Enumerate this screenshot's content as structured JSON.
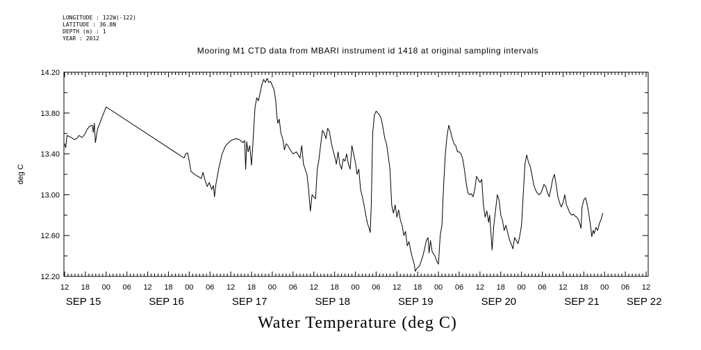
{
  "header": {
    "longitude": "LONGITUDE : 122W(-122)",
    "latitude": "LATITUDE : 36.8N",
    "depth": "DEPTH (m) : 1",
    "year": "YEAR : 2012"
  },
  "chart_data": {
    "type": "line",
    "title": "Mooring M1 CTD data from MBARI instrument id 1418 at original sampling intervals",
    "caption": "Water Temperature (deg C)",
    "ylabel": "deg C",
    "xlabel": "",
    "x_units": "hours since 12:00 SEP 15",
    "xlim": [
      -0.2,
      168.6
    ],
    "ylim": [
      12.2,
      14.2
    ],
    "y_ticks": [
      "12.20",
      "12.60",
      "13.00",
      "13.40",
      "13.80",
      "14.20"
    ],
    "x_hour_labels": [
      "12",
      "18",
      "00",
      "06",
      "12",
      "18",
      "00",
      "06",
      "12",
      "18",
      "00",
      "06",
      "12",
      "18",
      "00",
      "06",
      "12",
      "18",
      "00",
      "06",
      "12",
      "18",
      "00",
      "06",
      "12",
      "18",
      "00",
      "06",
      "12"
    ],
    "day_labels": [
      {
        "label": "SEP 15",
        "hour": 0
      },
      {
        "label": "SEP 16",
        "hour": 24
      },
      {
        "label": "SEP 17",
        "hour": 48
      },
      {
        "label": "SEP 18",
        "hour": 72
      },
      {
        "label": "SEP 19",
        "hour": 96
      },
      {
        "label": "SEP 20",
        "hour": 120
      },
      {
        "label": "SEP 21",
        "hour": 144
      },
      {
        "label": "SEP 22",
        "hour": 162
      }
    ],
    "series": [
      {
        "values": [
          [
            0,
            13.5
          ],
          [
            0.3,
            13.46
          ],
          [
            0.7,
            13.58
          ],
          [
            1.3,
            13.57
          ],
          [
            2,
            13.56
          ],
          [
            2.8,
            13.54
          ],
          [
            3.5,
            13.55
          ],
          [
            4.2,
            13.58
          ],
          [
            5,
            13.56
          ],
          [
            5.8,
            13.59
          ],
          [
            6.5,
            13.64
          ],
          [
            7.2,
            13.67
          ],
          [
            8,
            13.68
          ],
          [
            8.3,
            13.61
          ],
          [
            8.6,
            13.7
          ],
          [
            8.9,
            13.51
          ],
          [
            9.5,
            13.64
          ],
          [
            10.5,
            13.73
          ],
          [
            11.3,
            13.8
          ],
          [
            12,
            13.86
          ],
          [
            34.5,
            13.36
          ],
          [
            35,
            13.4
          ],
          [
            35.5,
            13.41
          ],
          [
            36,
            13.33
          ],
          [
            36.5,
            13.23
          ],
          [
            37.5,
            13.2
          ],
          [
            38.5,
            13.18
          ],
          [
            39.5,
            13.16
          ],
          [
            40,
            13.22
          ],
          [
            40.5,
            13.15
          ],
          [
            41.2,
            13.08
          ],
          [
            41.8,
            13.12
          ],
          [
            42.5,
            13.05
          ],
          [
            43,
            13.09
          ],
          [
            43.3,
            12.98
          ],
          [
            43.7,
            13.1
          ],
          [
            44.5,
            13.25
          ],
          [
            45.5,
            13.4
          ],
          [
            46.5,
            13.48
          ],
          [
            48,
            13.53
          ],
          [
            49.5,
            13.55
          ],
          [
            50.5,
            13.54
          ],
          [
            51.5,
            13.51
          ],
          [
            52,
            13.53
          ],
          [
            52.3,
            13.25
          ],
          [
            52.6,
            13.52
          ],
          [
            53,
            13.42
          ],
          [
            53.5,
            13.48
          ],
          [
            54,
            13.29
          ],
          [
            54.4,
            13.5
          ],
          [
            55,
            13.85
          ],
          [
            55.5,
            13.95
          ],
          [
            56,
            13.92
          ],
          [
            56.5,
            14.0
          ],
          [
            57,
            14.08
          ],
          [
            57.5,
            14.13
          ],
          [
            58,
            14.1
          ],
          [
            58.5,
            14.14
          ],
          [
            59,
            14.1
          ],
          [
            59.5,
            14.11
          ],
          [
            60,
            14.07
          ],
          [
            60.5,
            14.03
          ],
          [
            61,
            13.92
          ],
          [
            61.3,
            13.78
          ],
          [
            61.6,
            13.7
          ],
          [
            62,
            13.74
          ],
          [
            62.5,
            13.6
          ],
          [
            63,
            13.55
          ],
          [
            63.5,
            13.44
          ],
          [
            64,
            13.5
          ],
          [
            64.5,
            13.48
          ],
          [
            65,
            13.45
          ],
          [
            66,
            13.4
          ],
          [
            67,
            13.42
          ],
          [
            68,
            13.36
          ],
          [
            68.5,
            13.48
          ],
          [
            69,
            13.3
          ],
          [
            70,
            13.2
          ],
          [
            70.5,
            13.05
          ],
          [
            71,
            12.84
          ],
          [
            71.5,
            13.0
          ],
          [
            72.5,
            12.96
          ],
          [
            73,
            13.25
          ],
          [
            73.5,
            13.35
          ],
          [
            74,
            13.5
          ],
          [
            74.5,
            13.63
          ],
          [
            75,
            13.6
          ],
          [
            75.5,
            13.55
          ],
          [
            76,
            13.65
          ],
          [
            76.5,
            13.62
          ],
          [
            77,
            13.52
          ],
          [
            77.5,
            13.44
          ],
          [
            78,
            13.38
          ],
          [
            78.5,
            13.3
          ],
          [
            79,
            13.42
          ],
          [
            79.5,
            13.3
          ],
          [
            80,
            13.25
          ],
          [
            80.5,
            13.35
          ],
          [
            81,
            13.33
          ],
          [
            81.5,
            13.4
          ],
          [
            82,
            13.3
          ],
          [
            82.5,
            13.25
          ],
          [
            83,
            13.48
          ],
          [
            83.5,
            13.4
          ],
          [
            84,
            13.32
          ],
          [
            84.5,
            13.2
          ],
          [
            85,
            13.25
          ],
          [
            85.5,
            13.05
          ],
          [
            86,
            12.98
          ],
          [
            86.5,
            12.9
          ],
          [
            87,
            12.8
          ],
          [
            87.5,
            12.72
          ],
          [
            88,
            12.67
          ],
          [
            88.3,
            12.63
          ],
          [
            88.6,
            12.9
          ],
          [
            89,
            13.6
          ],
          [
            89.5,
            13.78
          ],
          [
            90,
            13.82
          ],
          [
            90.5,
            13.8
          ],
          [
            91,
            13.78
          ],
          [
            91.5,
            13.74
          ],
          [
            92,
            13.65
          ],
          [
            92.5,
            13.55
          ],
          [
            93,
            13.5
          ],
          [
            93.5,
            13.38
          ],
          [
            94,
            13.25
          ],
          [
            94.5,
            12.9
          ],
          [
            95,
            12.82
          ],
          [
            95.5,
            12.9
          ],
          [
            96,
            12.78
          ],
          [
            96.5,
            12.85
          ],
          [
            97,
            12.75
          ],
          [
            97.5,
            12.7
          ],
          [
            98,
            12.6
          ],
          [
            98.5,
            12.64
          ],
          [
            99,
            12.5
          ],
          [
            99.5,
            12.54
          ],
          [
            100,
            12.45
          ],
          [
            100.5,
            12.38
          ],
          [
            101,
            12.32
          ],
          [
            101.3,
            12.25
          ],
          [
            101.8,
            12.28
          ],
          [
            102.5,
            12.3
          ],
          [
            103,
            12.35
          ],
          [
            103.5,
            12.4
          ],
          [
            104,
            12.47
          ],
          [
            104.5,
            12.55
          ],
          [
            105,
            12.58
          ],
          [
            105.3,
            12.43
          ],
          [
            105.7,
            12.55
          ],
          [
            106.2,
            12.44
          ],
          [
            106.6,
            12.42
          ],
          [
            107,
            12.4
          ],
          [
            107.5,
            12.35
          ],
          [
            108,
            12.32
          ],
          [
            108.5,
            12.6
          ],
          [
            109,
            12.7
          ],
          [
            109.5,
            13.1
          ],
          [
            110,
            13.4
          ],
          [
            110.5,
            13.58
          ],
          [
            111,
            13.68
          ],
          [
            111.5,
            13.62
          ],
          [
            112,
            13.55
          ],
          [
            112.5,
            13.5
          ],
          [
            113,
            13.48
          ],
          [
            113.5,
            13.42
          ],
          [
            114,
            13.42
          ],
          [
            114.5,
            13.4
          ],
          [
            115,
            13.35
          ],
          [
            115.5,
            13.25
          ],
          [
            116,
            13.12
          ],
          [
            116.5,
            13.02
          ],
          [
            117,
            13.0
          ],
          [
            117.5,
            13.01
          ],
          [
            118,
            12.98
          ],
          [
            118.5,
            13.05
          ],
          [
            119,
            13.18
          ],
          [
            119.5,
            13.15
          ],
          [
            120,
            13.12
          ],
          [
            120.5,
            13.15
          ],
          [
            121,
            12.9
          ],
          [
            121.5,
            12.78
          ],
          [
            122,
            12.84
          ],
          [
            122.5,
            12.73
          ],
          [
            122.8,
            12.8
          ],
          [
            123.2,
            12.61
          ],
          [
            123.5,
            12.46
          ],
          [
            124,
            12.7
          ],
          [
            124.5,
            12.85
          ],
          [
            125,
            13.0
          ],
          [
            125.5,
            12.95
          ],
          [
            126,
            12.8
          ],
          [
            126.5,
            12.75
          ],
          [
            127,
            12.65
          ],
          [
            127.5,
            12.7
          ],
          [
            128,
            12.63
          ],
          [
            128.5,
            12.56
          ],
          [
            129,
            12.52
          ],
          [
            129.5,
            12.47
          ],
          [
            130,
            12.58
          ],
          [
            130.5,
            12.55
          ],
          [
            131,
            12.52
          ],
          [
            131.5,
            12.6
          ],
          [
            132,
            12.7
          ],
          [
            132.5,
            13.0
          ],
          [
            133,
            13.3
          ],
          [
            133.5,
            13.39
          ],
          [
            134,
            13.32
          ],
          [
            134.5,
            13.28
          ],
          [
            135,
            13.2
          ],
          [
            135.5,
            13.1
          ],
          [
            136,
            13.05
          ],
          [
            136.5,
            13.02
          ],
          [
            137,
            13.0
          ],
          [
            137.5,
            13.01
          ],
          [
            138,
            13.05
          ],
          [
            138.5,
            13.1
          ],
          [
            139,
            13.08
          ],
          [
            139.5,
            13.02
          ],
          [
            140,
            12.98
          ],
          [
            140.5,
            13.06
          ],
          [
            141,
            13.15
          ],
          [
            141.5,
            13.2
          ],
          [
            142,
            13.1
          ],
          [
            142.5,
            12.98
          ],
          [
            143,
            12.92
          ],
          [
            143.5,
            12.88
          ],
          [
            144,
            12.92
          ],
          [
            144.5,
            13.0
          ],
          [
            145,
            12.9
          ],
          [
            145.5,
            12.86
          ],
          [
            146,
            12.82
          ],
          [
            146.5,
            12.8
          ],
          [
            147,
            12.81
          ],
          [
            147.5,
            12.79
          ],
          [
            148,
            12.78
          ],
          [
            148.5,
            12.75
          ],
          [
            149,
            12.7
          ],
          [
            149.2,
            12.67
          ],
          [
            149.5,
            12.88
          ],
          [
            150,
            12.95
          ],
          [
            150.5,
            12.97
          ],
          [
            151,
            12.9
          ],
          [
            151.5,
            12.8
          ],
          [
            152,
            12.68
          ],
          [
            152.3,
            12.59
          ],
          [
            152.7,
            12.65
          ],
          [
            153,
            12.62
          ],
          [
            153.5,
            12.68
          ],
          [
            154,
            12.65
          ],
          [
            154.5,
            12.72
          ],
          [
            155,
            12.76
          ],
          [
            155.5,
            12.82
          ]
        ]
      }
    ]
  }
}
